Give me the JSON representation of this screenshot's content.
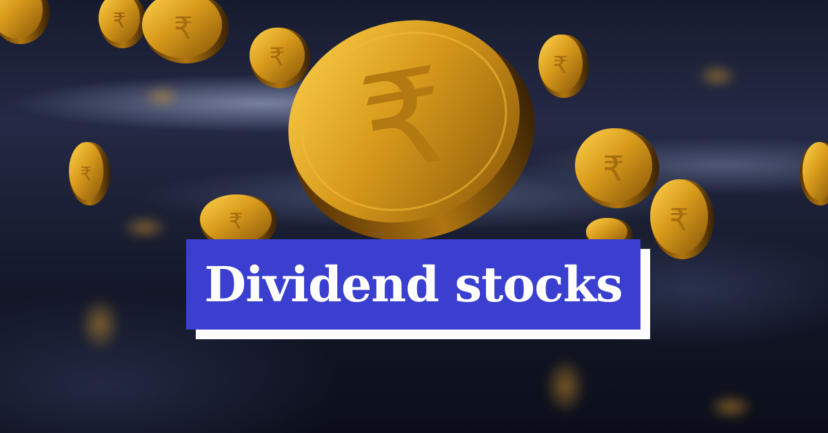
{
  "banner": {
    "title": "Dividend stocks"
  },
  "image": {
    "subject": "falling gold rupee coins",
    "currency_symbol": "₹"
  },
  "colors": {
    "title_box": "#3a3fcf",
    "title_text": "#ffffff",
    "title_shadow": "#ffffff",
    "coin_gold": "#c8921a",
    "background": "#161b2e"
  }
}
